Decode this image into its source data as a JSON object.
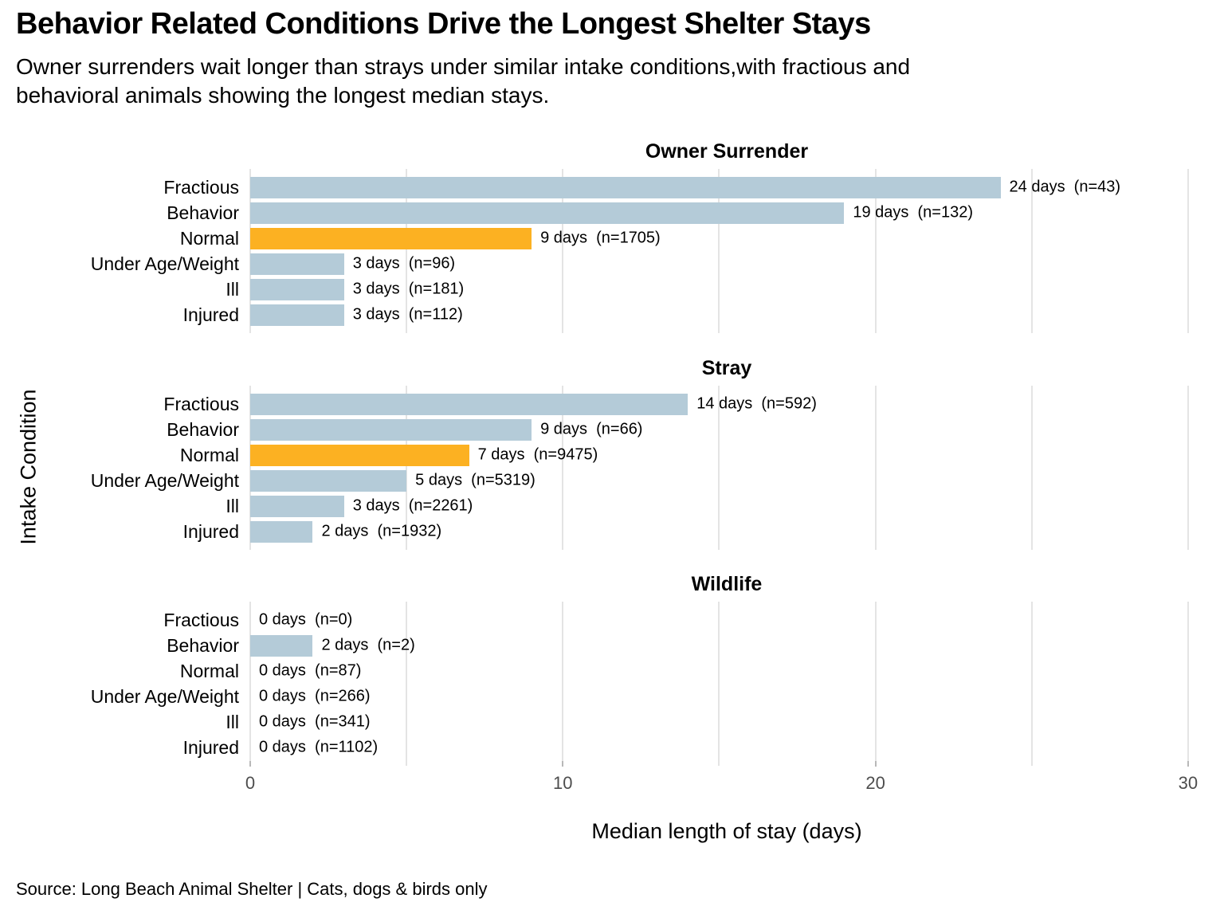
{
  "title": "Behavior Related Conditions Drive the Longest Shelter Stays",
  "subtitle_lines": [
    "Owner surrenders wait longer than strays under similar intake conditions,with fractious and",
    "behavioral animals showing the longest median stays."
  ],
  "caption": "Source: Long Beach Animal Shelter | Cats, dogs & birds only",
  "colors": {
    "bar": "#B4CBD8",
    "highlight": "#FCB122",
    "gridline": "#E4E4E4",
    "tick_mark": "#B8B8B8",
    "axis_text": "#4D4D4D",
    "text": "#000000"
  },
  "chart_data": {
    "type": "bar",
    "orientation": "horizontal",
    "title": "Behavior Related Conditions Drive the Longest Shelter Stays",
    "subtitle": "Owner surrenders wait longer than strays under similar intake conditions,with fractious and behavioral animals showing the longest median stays.",
    "xlabel": "Median length of stay (days)",
    "ylabel": "Intake Condition",
    "xlim": [
      0,
      30
    ],
    "x_ticks": [
      0,
      10,
      20,
      30
    ],
    "gridline_interval": 5,
    "grid": "vertical-only",
    "legend": "none",
    "highlight_category": "Normal",
    "categories": [
      "Fractious",
      "Behavior",
      "Normal",
      "Under Age/Weight",
      "Ill",
      "Injured"
    ],
    "facets": [
      {
        "title": "Owner Surrender",
        "values": [
          24,
          19,
          9,
          3,
          3,
          3
        ],
        "n": [
          43,
          132,
          1705,
          96,
          181,
          112
        ],
        "bar_labels": [
          "24 days  (n=43)",
          "19 days  (n=132)",
          "9 days  (n=1705)",
          "3 days  (n=96)",
          "3 days  (n=181)",
          "3 days  (n=112)"
        ]
      },
      {
        "title": "Stray",
        "values": [
          14,
          9,
          7,
          5,
          3,
          2
        ],
        "n": [
          592,
          66,
          9475,
          5319,
          2261,
          1932
        ],
        "bar_labels": [
          "14 days  (n=592)",
          "9 days  (n=66)",
          "7 days  (n=9475)",
          "5 days  (n=5319)",
          "3 days  (n=2261)",
          "2 days  (n=1932)"
        ]
      },
      {
        "title": "Wildlife",
        "values": [
          0,
          2,
          0,
          0,
          0,
          0
        ],
        "n": [
          0,
          2,
          87,
          266,
          341,
          1102
        ],
        "bar_labels": [
          "0 days  (n=0)",
          "2 days  (n=2)",
          "0 days  (n=87)",
          "0 days  (n=266)",
          "0 days  (n=341)",
          "0 days  (n=1102)"
        ]
      }
    ]
  }
}
